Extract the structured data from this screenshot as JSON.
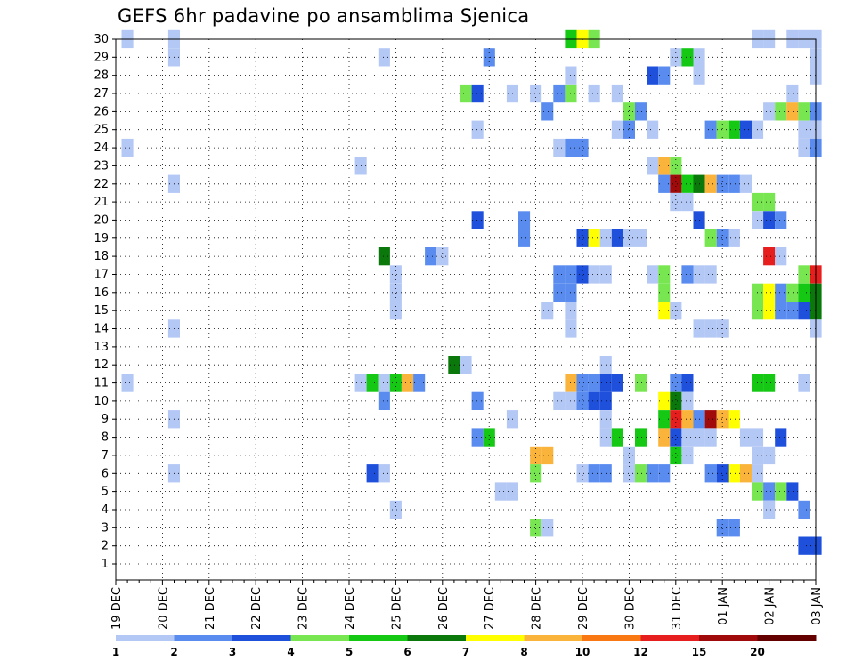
{
  "chart_data": {
    "type": "heatmap",
    "title": "GEFS 6hr padavine po ansamblima Sjenica",
    "xlabel": "",
    "ylabel": "",
    "x_tick_labels": [
      "19 DEC",
      "20 DEC",
      "21 DEC",
      "22 DEC",
      "23 DEC",
      "24 DEC",
      "25 DEC",
      "26 DEC",
      "27 DEC",
      "28 DEC",
      "29 DEC",
      "30 DEC",
      "31 DEC",
      "01 JAN",
      "02 JAN",
      "03 JAN"
    ],
    "y_tick_labels": [
      "30",
      "29",
      "28",
      "27",
      "26",
      "25",
      "24",
      "23",
      "22",
      "21",
      "20",
      "19",
      "18",
      "17",
      "16",
      "15",
      "14",
      "13",
      "12",
      "11",
      "10",
      "9",
      "8",
      "7",
      "6",
      "5",
      "4",
      "3",
      "2",
      "1"
    ],
    "ylim": [
      1,
      30
    ],
    "x_steps_per_day": 4,
    "x_total_steps": 61,
    "grid": true,
    "legend_placement": "bottom",
    "colorbar": {
      "labels": [
        "1",
        "2",
        "3",
        "4",
        "5",
        "6",
        "7",
        "8",
        "10",
        "12",
        "15",
        "20"
      ],
      "colors": [
        "#b4c8f5",
        "#5a8cf0",
        "#1e50dc",
        "#78e650",
        "#14c814",
        "#0a780a",
        "#ffff00",
        "#fab43c",
        "#fa7814",
        "#e61e1e",
        "#a00a0a",
        "#640000"
      ]
    },
    "cells": [
      {
        "member": 30,
        "step": 1,
        "level": 1
      },
      {
        "member": 30,
        "step": 5,
        "level": 1
      },
      {
        "member": 30,
        "step": 39,
        "level": 5
      },
      {
        "member": 30,
        "step": 40,
        "level": 7
      },
      {
        "member": 30,
        "step": 41,
        "level": 4
      },
      {
        "member": 30,
        "step": 55,
        "level": 1
      },
      {
        "member": 30,
        "step": 56,
        "level": 1
      },
      {
        "member": 30,
        "step": 58,
        "level": 1
      },
      {
        "member": 30,
        "step": 59,
        "level": 1
      },
      {
        "member": 30,
        "step": 60,
        "level": 1
      },
      {
        "member": 29,
        "step": 5,
        "level": 1
      },
      {
        "member": 29,
        "step": 23,
        "level": 1
      },
      {
        "member": 29,
        "step": 32,
        "level": 2
      },
      {
        "member": 29,
        "step": 48,
        "level": 1
      },
      {
        "member": 29,
        "step": 49,
        "level": 5
      },
      {
        "member": 29,
        "step": 50,
        "level": 1
      },
      {
        "member": 29,
        "step": 60,
        "level": 1
      },
      {
        "member": 28,
        "step": 39,
        "level": 1
      },
      {
        "member": 28,
        "step": 46,
        "level": 3
      },
      {
        "member": 28,
        "step": 47,
        "level": 2
      },
      {
        "member": 28,
        "step": 50,
        "level": 1
      },
      {
        "member": 28,
        "step": 60,
        "level": 1
      },
      {
        "member": 27,
        "step": 30,
        "level": 4
      },
      {
        "member": 27,
        "step": 31,
        "level": 3
      },
      {
        "member": 27,
        "step": 34,
        "level": 1
      },
      {
        "member": 27,
        "step": 36,
        "level": 1
      },
      {
        "member": 27,
        "step": 38,
        "level": 2
      },
      {
        "member": 27,
        "step": 39,
        "level": 4
      },
      {
        "member": 27,
        "step": 41,
        "level": 1
      },
      {
        "member": 27,
        "step": 43,
        "level": 1
      },
      {
        "member": 27,
        "step": 58,
        "level": 1
      },
      {
        "member": 26,
        "step": 37,
        "level": 2
      },
      {
        "member": 26,
        "step": 44,
        "level": 4
      },
      {
        "member": 26,
        "step": 45,
        "level": 2
      },
      {
        "member": 26,
        "step": 56,
        "level": 1
      },
      {
        "member": 26,
        "step": 57,
        "level": 4
      },
      {
        "member": 26,
        "step": 58,
        "level": 8
      },
      {
        "member": 26,
        "step": 59,
        "level": 4
      },
      {
        "member": 26,
        "step": 60,
        "level": 2
      },
      {
        "member": 25,
        "step": 31,
        "level": 1
      },
      {
        "member": 25,
        "step": 43,
        "level": 1
      },
      {
        "member": 25,
        "step": 44,
        "level": 2
      },
      {
        "member": 25,
        "step": 46,
        "level": 1
      },
      {
        "member": 25,
        "step": 51,
        "level": 2
      },
      {
        "member": 25,
        "step": 52,
        "level": 4
      },
      {
        "member": 25,
        "step": 53,
        "level": 5
      },
      {
        "member": 25,
        "step": 54,
        "level": 3
      },
      {
        "member": 25,
        "step": 55,
        "level": 1
      },
      {
        "member": 25,
        "step": 59,
        "level": 1
      },
      {
        "member": 25,
        "step": 60,
        "level": 1
      },
      {
        "member": 24,
        "step": 1,
        "level": 1
      },
      {
        "member": 24,
        "step": 38,
        "level": 1
      },
      {
        "member": 24,
        "step": 39,
        "level": 2
      },
      {
        "member": 24,
        "step": 40,
        "level": 2
      },
      {
        "member": 24,
        "step": 59,
        "level": 1
      },
      {
        "member": 24,
        "step": 60,
        "level": 2
      },
      {
        "member": 23,
        "step": 21,
        "level": 1
      },
      {
        "member": 23,
        "step": 46,
        "level": 1
      },
      {
        "member": 23,
        "step": 47,
        "level": 8
      },
      {
        "member": 23,
        "step": 48,
        "level": 4
      },
      {
        "member": 22,
        "step": 5,
        "level": 1
      },
      {
        "member": 22,
        "step": 47,
        "level": 2
      },
      {
        "member": 22,
        "step": 48,
        "level": 11
      },
      {
        "member": 22,
        "step": 49,
        "level": 5
      },
      {
        "member": 22,
        "step": 50,
        "level": 6
      },
      {
        "member": 22,
        "step": 51,
        "level": 8
      },
      {
        "member": 22,
        "step": 52,
        "level": 2
      },
      {
        "member": 22,
        "step": 53,
        "level": 2
      },
      {
        "member": 22,
        "step": 54,
        "level": 1
      },
      {
        "member": 21,
        "step": 48,
        "level": 1
      },
      {
        "member": 21,
        "step": 49,
        "level": 1
      },
      {
        "member": 21,
        "step": 55,
        "level": 4
      },
      {
        "member": 21,
        "step": 56,
        "level": 4
      },
      {
        "member": 20,
        "step": 31,
        "level": 3
      },
      {
        "member": 20,
        "step": 35,
        "level": 2
      },
      {
        "member": 20,
        "step": 50,
        "level": 3
      },
      {
        "member": 20,
        "step": 55,
        "level": 1
      },
      {
        "member": 20,
        "step": 56,
        "level": 3
      },
      {
        "member": 20,
        "step": 57,
        "level": 2
      },
      {
        "member": 19,
        "step": 35,
        "level": 2
      },
      {
        "member": 19,
        "step": 40,
        "level": 3
      },
      {
        "member": 19,
        "step": 41,
        "level": 7
      },
      {
        "member": 19,
        "step": 42,
        "level": 1
      },
      {
        "member": 19,
        "step": 43,
        "level": 3
      },
      {
        "member": 19,
        "step": 44,
        "level": 1
      },
      {
        "member": 19,
        "step": 45,
        "level": 1
      },
      {
        "member": 19,
        "step": 51,
        "level": 4
      },
      {
        "member": 19,
        "step": 52,
        "level": 2
      },
      {
        "member": 19,
        "step": 53,
        "level": 1
      },
      {
        "member": 18,
        "step": 23,
        "level": 6
      },
      {
        "member": 18,
        "step": 27,
        "level": 2
      },
      {
        "member": 18,
        "step": 28,
        "level": 1
      },
      {
        "member": 18,
        "step": 56,
        "level": 10
      },
      {
        "member": 18,
        "step": 57,
        "level": 1
      },
      {
        "member": 17,
        "step": 24,
        "level": 1
      },
      {
        "member": 17,
        "step": 38,
        "level": 2
      },
      {
        "member": 17,
        "step": 39,
        "level": 2
      },
      {
        "member": 17,
        "step": 40,
        "level": 3
      },
      {
        "member": 17,
        "step": 41,
        "level": 1
      },
      {
        "member": 17,
        "step": 42,
        "level": 1
      },
      {
        "member": 17,
        "step": 46,
        "level": 1
      },
      {
        "member": 17,
        "step": 47,
        "level": 4
      },
      {
        "member": 17,
        "step": 49,
        "level": 2
      },
      {
        "member": 17,
        "step": 50,
        "level": 1
      },
      {
        "member": 17,
        "step": 51,
        "level": 1
      },
      {
        "member": 17,
        "step": 59,
        "level": 4
      },
      {
        "member": 17,
        "step": 60,
        "level": 10
      },
      {
        "member": 16,
        "step": 24,
        "level": 1
      },
      {
        "member": 16,
        "step": 38,
        "level": 2
      },
      {
        "member": 16,
        "step": 39,
        "level": 2
      },
      {
        "member": 16,
        "step": 47,
        "level": 4
      },
      {
        "member": 16,
        "step": 55,
        "level": 4
      },
      {
        "member": 16,
        "step": 56,
        "level": 7
      },
      {
        "member": 16,
        "step": 57,
        "level": 2
      },
      {
        "member": 16,
        "step": 58,
        "level": 4
      },
      {
        "member": 16,
        "step": 59,
        "level": 5
      },
      {
        "member": 16,
        "step": 60,
        "level": 6
      },
      {
        "member": 15,
        "step": 24,
        "level": 1
      },
      {
        "member": 15,
        "step": 37,
        "level": 1
      },
      {
        "member": 15,
        "step": 39,
        "level": 1
      },
      {
        "member": 15,
        "step": 47,
        "level": 7
      },
      {
        "member": 15,
        "step": 48,
        "level": 1
      },
      {
        "member": 15,
        "step": 55,
        "level": 4
      },
      {
        "member": 15,
        "step": 56,
        "level": 7
      },
      {
        "member": 15,
        "step": 57,
        "level": 2
      },
      {
        "member": 15,
        "step": 58,
        "level": 2
      },
      {
        "member": 15,
        "step": 59,
        "level": 3
      },
      {
        "member": 15,
        "step": 60,
        "level": 6
      },
      {
        "member": 14,
        "step": 5,
        "level": 1
      },
      {
        "member": 14,
        "step": 39,
        "level": 1
      },
      {
        "member": 14,
        "step": 50,
        "level": 1
      },
      {
        "member": 14,
        "step": 51,
        "level": 1
      },
      {
        "member": 14,
        "step": 52,
        "level": 1
      },
      {
        "member": 14,
        "step": 60,
        "level": 1
      },
      {
        "member": 12,
        "step": 29,
        "level": 6
      },
      {
        "member": 12,
        "step": 30,
        "level": 1
      },
      {
        "member": 12,
        "step": 42,
        "level": 1
      },
      {
        "member": 11,
        "step": 1,
        "level": 1
      },
      {
        "member": 11,
        "step": 21,
        "level": 1
      },
      {
        "member": 11,
        "step": 22,
        "level": 5
      },
      {
        "member": 11,
        "step": 23,
        "level": 1
      },
      {
        "member": 11,
        "step": 24,
        "level": 5
      },
      {
        "member": 11,
        "step": 25,
        "level": 8
      },
      {
        "member": 11,
        "step": 26,
        "level": 2
      },
      {
        "member": 11,
        "step": 39,
        "level": 8
      },
      {
        "member": 11,
        "step": 40,
        "level": 2
      },
      {
        "member": 11,
        "step": 41,
        "level": 2
      },
      {
        "member": 11,
        "step": 42,
        "level": 3
      },
      {
        "member": 11,
        "step": 43,
        "level": 3
      },
      {
        "member": 11,
        "step": 45,
        "level": 4
      },
      {
        "member": 11,
        "step": 48,
        "level": 2
      },
      {
        "member": 11,
        "step": 49,
        "level": 3
      },
      {
        "member": 11,
        "step": 55,
        "level": 5
      },
      {
        "member": 11,
        "step": 56,
        "level": 5
      },
      {
        "member": 11,
        "step": 59,
        "level": 1
      },
      {
        "member": 10,
        "step": 23,
        "level": 2
      },
      {
        "member": 10,
        "step": 31,
        "level": 2
      },
      {
        "member": 10,
        "step": 38,
        "level": 1
      },
      {
        "member": 10,
        "step": 39,
        "level": 1
      },
      {
        "member": 10,
        "step": 40,
        "level": 2
      },
      {
        "member": 10,
        "step": 41,
        "level": 3
      },
      {
        "member": 10,
        "step": 42,
        "level": 3
      },
      {
        "member": 10,
        "step": 47,
        "level": 7
      },
      {
        "member": 10,
        "step": 48,
        "level": 6
      },
      {
        "member": 10,
        "step": 49,
        "level": 1
      },
      {
        "member": 9,
        "step": 5,
        "level": 1
      },
      {
        "member": 9,
        "step": 34,
        "level": 1
      },
      {
        "member": 9,
        "step": 42,
        "level": 1
      },
      {
        "member": 9,
        "step": 47,
        "level": 5
      },
      {
        "member": 9,
        "step": 48,
        "level": 10
      },
      {
        "member": 9,
        "step": 49,
        "level": 8
      },
      {
        "member": 9,
        "step": 50,
        "level": 2
      },
      {
        "member": 9,
        "step": 51,
        "level": 11
      },
      {
        "member": 9,
        "step": 52,
        "level": 8
      },
      {
        "member": 9,
        "step": 53,
        "level": 7
      },
      {
        "member": 8,
        "step": 31,
        "level": 2
      },
      {
        "member": 8,
        "step": 32,
        "level": 5
      },
      {
        "member": 8,
        "step": 42,
        "level": 1
      },
      {
        "member": 8,
        "step": 43,
        "level": 5
      },
      {
        "member": 8,
        "step": 45,
        "level": 5
      },
      {
        "member": 8,
        "step": 47,
        "level": 8
      },
      {
        "member": 8,
        "step": 48,
        "level": 3
      },
      {
        "member": 8,
        "step": 49,
        "level": 1
      },
      {
        "member": 8,
        "step": 50,
        "level": 1
      },
      {
        "member": 8,
        "step": 51,
        "level": 1
      },
      {
        "member": 8,
        "step": 54,
        "level": 1
      },
      {
        "member": 8,
        "step": 55,
        "level": 1
      },
      {
        "member": 8,
        "step": 57,
        "level": 3
      },
      {
        "member": 7,
        "step": 36,
        "level": 8
      },
      {
        "member": 7,
        "step": 37,
        "level": 8
      },
      {
        "member": 7,
        "step": 44,
        "level": 1
      },
      {
        "member": 7,
        "step": 48,
        "level": 5
      },
      {
        "member": 7,
        "step": 49,
        "level": 1
      },
      {
        "member": 7,
        "step": 55,
        "level": 1
      },
      {
        "member": 7,
        "step": 56,
        "level": 1
      },
      {
        "member": 6,
        "step": 5,
        "level": 1
      },
      {
        "member": 6,
        "step": 22,
        "level": 3
      },
      {
        "member": 6,
        "step": 23,
        "level": 1
      },
      {
        "member": 6,
        "step": 36,
        "level": 4
      },
      {
        "member": 6,
        "step": 40,
        "level": 1
      },
      {
        "member": 6,
        "step": 41,
        "level": 2
      },
      {
        "member": 6,
        "step": 42,
        "level": 2
      },
      {
        "member": 6,
        "step": 44,
        "level": 1
      },
      {
        "member": 6,
        "step": 45,
        "level": 4
      },
      {
        "member": 6,
        "step": 46,
        "level": 2
      },
      {
        "member": 6,
        "step": 47,
        "level": 2
      },
      {
        "member": 6,
        "step": 51,
        "level": 2
      },
      {
        "member": 6,
        "step": 52,
        "level": 3
      },
      {
        "member": 6,
        "step": 53,
        "level": 7
      },
      {
        "member": 6,
        "step": 54,
        "level": 8
      },
      {
        "member": 6,
        "step": 55,
        "level": 1
      },
      {
        "member": 5,
        "step": 33,
        "level": 1
      },
      {
        "member": 5,
        "step": 34,
        "level": 1
      },
      {
        "member": 5,
        "step": 55,
        "level": 4
      },
      {
        "member": 5,
        "step": 56,
        "level": 2
      },
      {
        "member": 5,
        "step": 57,
        "level": 4
      },
      {
        "member": 5,
        "step": 58,
        "level": 3
      },
      {
        "member": 4,
        "step": 24,
        "level": 1
      },
      {
        "member": 4,
        "step": 56,
        "level": 1
      },
      {
        "member": 4,
        "step": 59,
        "level": 2
      },
      {
        "member": 3,
        "step": 36,
        "level": 4
      },
      {
        "member": 3,
        "step": 37,
        "level": 1
      },
      {
        "member": 3,
        "step": 52,
        "level": 2
      },
      {
        "member": 3,
        "step": 53,
        "level": 2
      },
      {
        "member": 2,
        "step": 59,
        "level": 3
      },
      {
        "member": 2,
        "step": 60,
        "level": 3
      }
    ]
  }
}
